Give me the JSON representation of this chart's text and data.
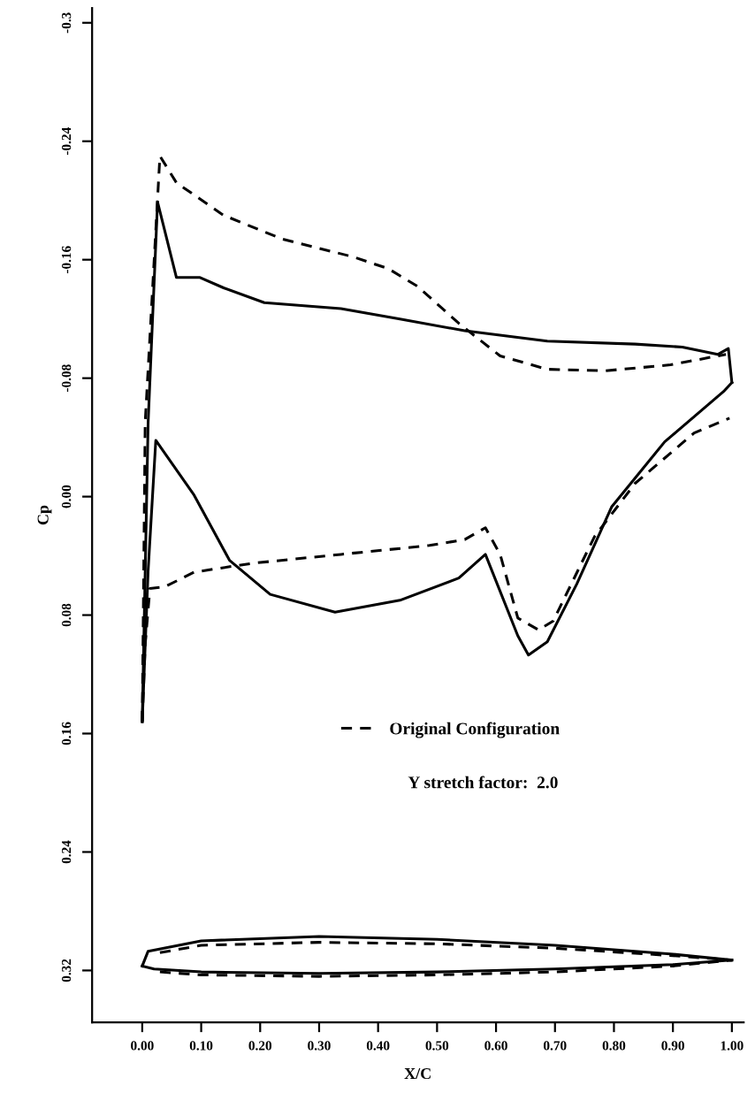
{
  "chart_data": {
    "type": "line",
    "xlabel": "X/C",
    "ylabel": "Cp",
    "xlim": [
      -0.085,
      1.02
    ],
    "xticks": [
      {
        "value": 0,
        "label": "0.00"
      },
      {
        "value": 0.1,
        "label": "0.10"
      },
      {
        "value": 0.2,
        "label": "0.20"
      },
      {
        "value": 0.3,
        "label": "0.30"
      },
      {
        "value": 0.4,
        "label": "0.40"
      },
      {
        "value": 0.5,
        "label": "0.50"
      },
      {
        "value": 0.6,
        "label": "0.60"
      },
      {
        "value": 0.7,
        "label": "0.70"
      },
      {
        "value": 0.8,
        "label": "0.80"
      },
      {
        "value": 0.9,
        "label": "0.90"
      },
      {
        "value": 1,
        "label": "1.00"
      }
    ],
    "ylim": [
      0.355,
      -0.33
    ],
    "yticks": [
      {
        "value": -0.32,
        "label": "-0.3"
      },
      -0.24,
      -0.16,
      {
        "value": -0.08,
        "label": "-0.08"
      },
      {
        "value": 0,
        "label": "0.00"
      },
      {
        "value": 0.08,
        "label": "0.08"
      },
      {
        "value": 0.16,
        "label": "0.16"
      },
      0.24,
      0.32
    ],
    "grid": false,
    "legend": "bottom",
    "marker": "none",
    "annotations": [
      "Y stretch factor:  2.0"
    ],
    "series": [
      {
        "name": "Original Configuration",
        "color": "#000000",
        "line_style": "dashed",
        "x": [
          0,
          0.005,
          0.03,
          0.058,
          0.138,
          0.237,
          0.357,
          0.417,
          0.467,
          0.537,
          0.607,
          0.687,
          0.786,
          0.896,
          0.976,
          0.99
        ],
        "values": [
          0.152,
          -0.05,
          -0.23,
          -0.212,
          -0.19,
          -0.174,
          -0.162,
          -0.154,
          -0.142,
          -0.117,
          -0.095,
          -0.086,
          -0.085,
          -0.089,
          -0.095,
          -0.096
        ]
      },
      {
        "color": "#000000",
        "line_style": "dashed",
        "x": [
          0,
          0.005,
          0.013,
          0.038,
          0.088,
          0.187,
          0.337,
          0.487,
          0.547,
          0.582,
          0.607,
          0.637,
          0.672,
          0.697,
          0.767,
          0.836,
          0.936,
          0.996
        ],
        "values": [
          0.152,
          0.1,
          0.062,
          0.061,
          0.051,
          0.045,
          0.039,
          0.033,
          0.029,
          0.021,
          0.039,
          0.082,
          0.09,
          0.084,
          0.027,
          -0.009,
          -0.043,
          -0.053
        ]
      },
      {
        "color": "#000000",
        "line_style": "solid",
        "x": [
          0,
          0.01,
          0.026,
          0.058,
          0.098,
          0.138,
          0.207,
          0.337,
          0.437,
          0.547,
          0.687,
          0.836,
          0.916,
          0.976,
          0.994,
          1.0
        ],
        "values": [
          0.152,
          -0.05,
          -0.199,
          -0.148,
          -0.148,
          -0.141,
          -0.131,
          -0.127,
          -0.12,
          -0.112,
          -0.105,
          -0.103,
          -0.101,
          -0.096,
          -0.1,
          -0.077
        ]
      },
      {
        "color": "#000000",
        "line_style": "solid",
        "x": [
          0,
          0.01,
          0.023,
          0.088,
          0.148,
          0.217,
          0.327,
          0.437,
          0.537,
          0.582,
          0.637,
          0.655,
          0.687,
          0.737,
          0.796,
          0.886,
          0.986,
          1.0
        ],
        "values": [
          0.152,
          0.05,
          -0.038,
          -0.001,
          0.043,
          0.066,
          0.078,
          0.07,
          0.055,
          0.039,
          0.094,
          0.107,
          0.098,
          0.059,
          0.007,
          -0.037,
          -0.071,
          -0.077
        ]
      },
      {
        "color": "#000000",
        "line_style": "solid",
        "x": [
          0,
          0.01,
          0.1,
          0.3,
          0.5,
          0.7,
          0.9,
          1.0
        ],
        "values": [
          0.317,
          0.307,
          0.3,
          0.297,
          0.299,
          0.303,
          0.309,
          0.313
        ]
      },
      {
        "color": "#000000",
        "line_style": "solid",
        "x": [
          0,
          0.02,
          0.1,
          0.3,
          0.5,
          0.7,
          0.9,
          1.0
        ],
        "values": [
          0.317,
          0.319,
          0.321,
          0.322,
          0.321,
          0.319,
          0.316,
          0.313
        ]
      },
      {
        "color": "#000000",
        "line_style": "dashed",
        "x": [
          0.03,
          0.1,
          0.3,
          0.5,
          0.7,
          0.9,
          1.0
        ],
        "values": [
          0.308,
          0.303,
          0.301,
          0.302,
          0.305,
          0.31,
          0.313
        ]
      },
      {
        "color": "#000000",
        "line_style": "dashed",
        "x": [
          0.03,
          0.1,
          0.3,
          0.5,
          0.7,
          0.9,
          1.0
        ],
        "values": [
          0.321,
          0.323,
          0.324,
          0.323,
          0.321,
          0.317,
          0.313
        ]
      }
    ]
  }
}
